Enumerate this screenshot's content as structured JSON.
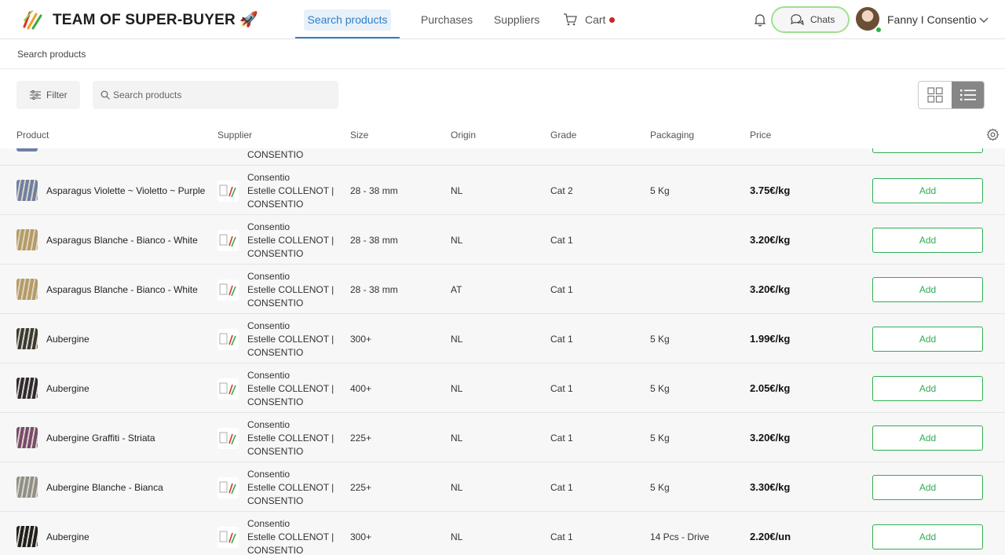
{
  "header": {
    "team_title": "TEAM OF SUPER-BUYER 🚀",
    "nav": {
      "search_products": "Search products",
      "purchases": "Purchases",
      "suppliers": "Suppliers",
      "cart": "Cart"
    },
    "chats_label": "Chats",
    "user_name": "Fanny I Consentio"
  },
  "breadcrumb": "Search products",
  "toolbar": {
    "filter_label": "Filter",
    "search_placeholder": "Search products"
  },
  "table": {
    "columns": [
      "Product",
      "Supplier",
      "Size",
      "Origin",
      "Grade",
      "Packaging",
      "Price"
    ],
    "partial_row": {
      "supplier_tail": "CONSENTIO"
    },
    "add_label": "Add",
    "rows": [
      {
        "product": "Asparagus Violette ~ Violetto ~ Purple",
        "supplier": [
          "Consentio",
          "Estelle COLLENOT |",
          "CONSENTIO"
        ],
        "size": "28 - 38 mm",
        "origin": "NL",
        "grade": "Cat 2",
        "packaging": "5 Kg",
        "price": "3.75€/kg",
        "thumb_color": "#6f7fa3"
      },
      {
        "product": "Asparagus Blanche - Bianco - White",
        "supplier": [
          "Consentio",
          "Estelle COLLENOT |",
          "CONSENTIO"
        ],
        "size": "28 - 38 mm",
        "origin": "NL",
        "grade": "Cat 1",
        "packaging": "",
        "price": "3.20€/kg",
        "thumb_color": "#b79a63"
      },
      {
        "product": "Asparagus Blanche - Bianco - White",
        "supplier": [
          "Consentio",
          "Estelle COLLENOT |",
          "CONSENTIO"
        ],
        "size": "28 - 38 mm",
        "origin": "AT",
        "grade": "Cat 1",
        "packaging": "",
        "price": "3.20€/kg",
        "thumb_color": "#b79a63"
      },
      {
        "product": "Aubergine",
        "supplier": [
          "Consentio",
          "Estelle COLLENOT |",
          "CONSENTIO"
        ],
        "size": "300+",
        "origin": "NL",
        "grade": "Cat 1",
        "packaging": "5 Kg",
        "price": "1.99€/kg",
        "thumb_color": "#3a3a35"
      },
      {
        "product": "Aubergine",
        "supplier": [
          "Consentio",
          "Estelle COLLENOT |",
          "CONSENTIO"
        ],
        "size": "400+",
        "origin": "NL",
        "grade": "Cat 1",
        "packaging": "5 Kg",
        "price": "2.05€/kg",
        "thumb_color": "#2e2a33"
      },
      {
        "product": "Aubergine Graffiti - Striata",
        "supplier": [
          "Consentio",
          "Estelle COLLENOT |",
          "CONSENTIO"
        ],
        "size": "225+",
        "origin": "NL",
        "grade": "Cat 1",
        "packaging": "5 Kg",
        "price": "3.20€/kg",
        "thumb_color": "#7a4a6d"
      },
      {
        "product": "Aubergine Blanche - Bianca",
        "supplier": [
          "Consentio",
          "Estelle COLLENOT |",
          "CONSENTIO"
        ],
        "size": "225+",
        "origin": "NL",
        "grade": "Cat 1",
        "packaging": "5 Kg",
        "price": "3.30€/kg",
        "thumb_color": "#8f8f8a"
      },
      {
        "product": "Aubergine",
        "supplier": [
          "Consentio",
          "Estelle COLLENOT |",
          "CONSENTIO"
        ],
        "size": "300+",
        "origin": "NL",
        "grade": "Cat 1",
        "packaging": "14 Pcs - Drive",
        "price": "2.20€/un",
        "thumb_color": "#1f1f22"
      }
    ]
  },
  "colors": {
    "accent_blue": "#2f7fc6",
    "add_green": "#2fae52",
    "cart_dot": "#d32020",
    "online_dot": "#2db24a"
  }
}
